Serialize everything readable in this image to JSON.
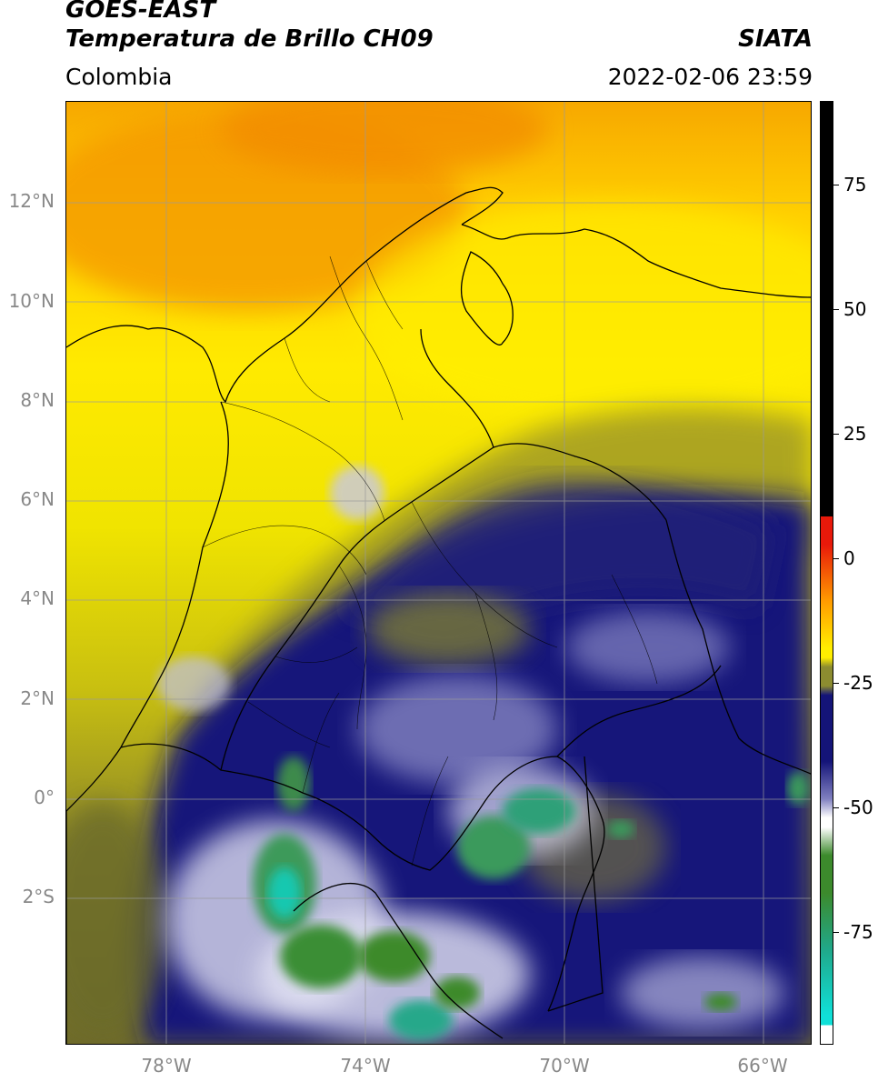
{
  "header": {
    "satellite": "GOES-EAST",
    "product": "Temperatura de Brillo CH09",
    "region": "Colombia",
    "organization": "SIATA",
    "timestamp": "2022-02-06 23:59"
  },
  "map": {
    "lat_labels": [
      "12°N",
      "10°N",
      "8°N",
      "6°N",
      "4°N",
      "2°N",
      "0°",
      "2°S"
    ],
    "lon_labels": [
      "78°W",
      "74°W",
      "70°W",
      "66°W"
    ]
  },
  "colorbar": {
    "labels": [
      "75",
      "50",
      "25",
      "0",
      "-25",
      "-50",
      "-75"
    ],
    "colors": {
      "black": "#000000",
      "red": "#e8190a",
      "orange": "#ff9b00",
      "yellow": "#ffee00",
      "olive": "#8c8c30",
      "navy": "#141478",
      "white": "#ffffff",
      "green": "#3c8a2c",
      "cyan": "#10e0d8"
    }
  }
}
